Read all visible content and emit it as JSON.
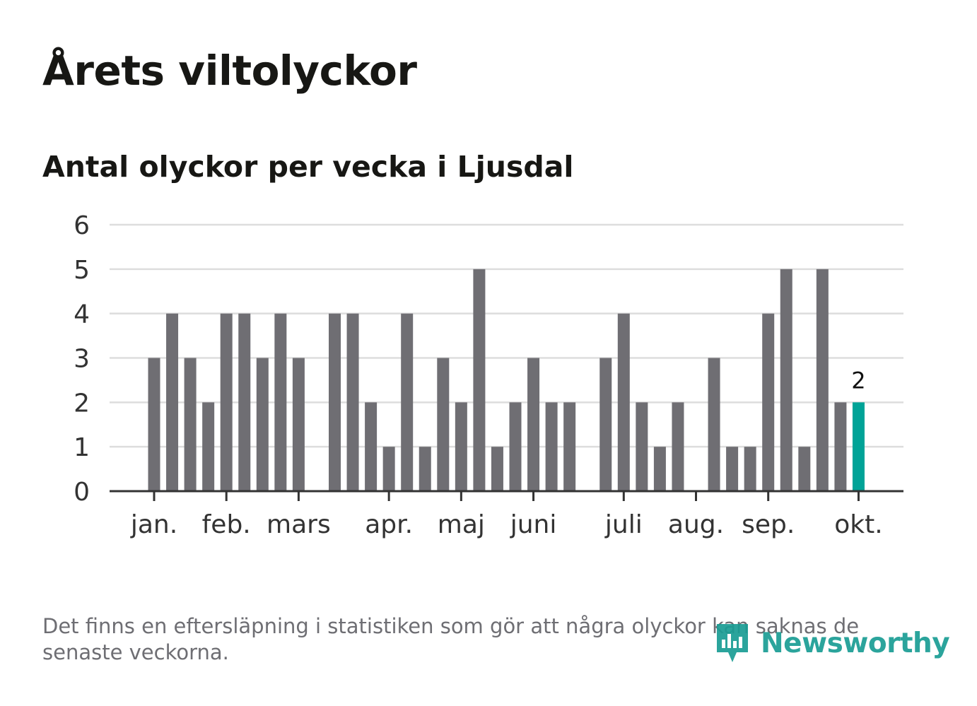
{
  "title": "Årets viltolyckor",
  "subtitle": "Antal olyckor per vecka i Ljusdal",
  "footnote": "Det finns en eftersläpning i statistiken som gör att några olyckor kan saknas de senaste veckorna.",
  "logo": {
    "text": "Newsworthy",
    "icon": "bar-chart-pin-icon"
  },
  "colors": {
    "bar": "#6f6e73",
    "highlight": "#00a397",
    "grid": "#dddddd",
    "axis": "#333333",
    "text": "#333333"
  },
  "chart_data": {
    "type": "bar",
    "title": "Antal olyckor per vecka i Ljusdal",
    "xlabel": "",
    "ylabel": "",
    "ylim": [
      0,
      6
    ],
    "yticks": [
      "0",
      "1",
      "2",
      "3",
      "4",
      "5",
      "6"
    ],
    "x_unit": "week",
    "weeks": [
      1,
      2,
      3,
      4,
      5,
      6,
      7,
      8,
      9,
      10,
      11,
      12,
      13,
      14,
      15,
      16,
      17,
      18,
      19,
      20,
      21,
      22,
      23,
      24,
      25,
      26,
      27,
      28,
      29,
      30,
      31,
      32,
      33,
      34,
      35,
      36,
      37,
      38,
      39,
      40
    ],
    "values": [
      3,
      4,
      3,
      2,
      4,
      4,
      3,
      4,
      3,
      0,
      4,
      4,
      2,
      1,
      4,
      1,
      3,
      2,
      5,
      1,
      2,
      3,
      2,
      2,
      0,
      3,
      4,
      2,
      1,
      2,
      0,
      3,
      1,
      1,
      4,
      5,
      1,
      5,
      2,
      2
    ],
    "highlight_index": 39,
    "highlight_label": "2",
    "month_ticks": [
      {
        "label": "jan.",
        "week": 1
      },
      {
        "label": "feb.",
        "week": 5
      },
      {
        "label": "mars",
        "week": 9
      },
      {
        "label": "apr.",
        "week": 14
      },
      {
        "label": "maj",
        "week": 18
      },
      {
        "label": "juni",
        "week": 22
      },
      {
        "label": "juli",
        "week": 27
      },
      {
        "label": "aug.",
        "week": 31
      },
      {
        "label": "sep.",
        "week": 35
      },
      {
        "label": "okt.",
        "week": 40
      }
    ]
  }
}
